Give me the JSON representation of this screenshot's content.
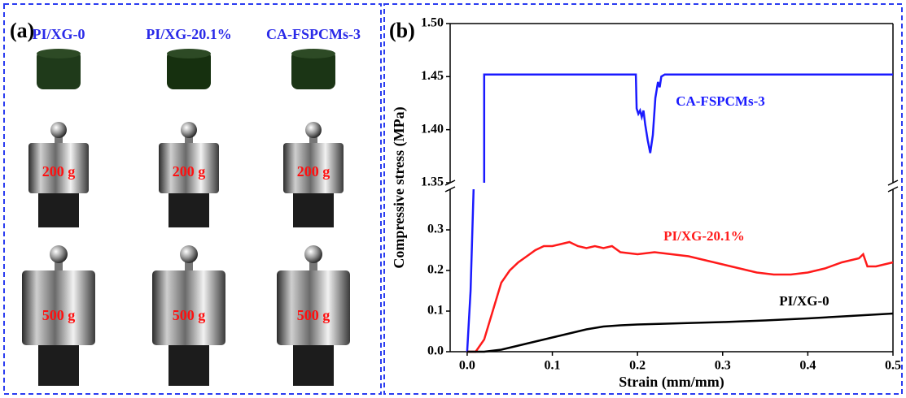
{
  "panel_a": {
    "label": "(a)",
    "columns": [
      "PI/XG-0",
      "PI/XG-20.1%",
      "CA-FSPCMs-3"
    ],
    "row_200": [
      "200 g",
      "200 g",
      "200 g"
    ],
    "row_500": [
      "500 g",
      "500 g",
      "500 g"
    ]
  },
  "chart_data": {
    "type": "line",
    "panel_label": "(b)",
    "x_label": "Strain (mm/mm)",
    "y_label": "Compressive stress (MPa)",
    "xlim": [
      -0.02,
      0.5
    ],
    "xticks": [
      {
        "value": 0,
        "label": "0.0"
      },
      0.1,
      0.2,
      0.3,
      0.4,
      0.5
    ],
    "y_segments": [
      {
        "ylim": [
          0,
          0.4
        ],
        "yticks": [
          {
            "value": 0,
            "label": "0.0"
          },
          0.1,
          0.2,
          0.3
        ]
      },
      {
        "ylim": [
          1.35,
          1.5
        ],
        "yticks": [
          1.35,
          {
            "value": 1.4,
            "label": "1.40"
          },
          1.45,
          {
            "value": 1.5,
            "label": "1.50"
          }
        ]
      }
    ],
    "series": [
      {
        "name": "CA-FSPCMs-3",
        "color": "#1a1aff",
        "x": [
          0,
          0.004,
          0.0075,
          null,
          0.02,
          0.02,
          0.198,
          0.199,
          0.201,
          0.203,
          0.205,
          0.207,
          0.209,
          0.212,
          0.215,
          0.218,
          0.221,
          0.224,
          0.226,
          0.228,
          0.232,
          0.5
        ],
        "values": [
          0,
          0.15,
          0.4,
          null,
          1.35,
          1.452,
          1.452,
          1.42,
          1.415,
          1.418,
          1.412,
          1.418,
          1.405,
          1.39,
          1.378,
          1.395,
          1.43,
          1.445,
          1.44,
          1.45,
          1.452,
          1.452
        ]
      },
      {
        "name": "PI/XG-20.1%",
        "color": "#ff1a1a",
        "x": [
          0,
          0.01,
          0.02,
          0.03,
          0.04,
          0.05,
          0.06,
          0.07,
          0.08,
          0.09,
          0.1,
          0.11,
          0.12,
          0.13,
          0.14,
          0.15,
          0.16,
          0.17,
          0.18,
          0.2,
          0.22,
          0.24,
          0.26,
          0.28,
          0.3,
          0.32,
          0.34,
          0.36,
          0.38,
          0.4,
          0.42,
          0.44,
          0.46,
          0.465,
          0.47,
          0.48,
          0.49,
          0.5
        ],
        "values": [
          0,
          0,
          0.03,
          0.1,
          0.17,
          0.2,
          0.22,
          0.235,
          0.25,
          0.26,
          0.26,
          0.265,
          0.27,
          0.26,
          0.255,
          0.26,
          0.255,
          0.26,
          0.245,
          0.24,
          0.245,
          0.24,
          0.235,
          0.225,
          0.215,
          0.205,
          0.195,
          0.19,
          0.19,
          0.195,
          0.205,
          0.22,
          0.23,
          0.24,
          0.21,
          0.21,
          0.215,
          0.22
        ]
      },
      {
        "name": "PI/XG-0",
        "color": "#000000",
        "x": [
          0,
          0.02,
          0.04,
          0.06,
          0.08,
          0.1,
          0.12,
          0.14,
          0.16,
          0.18,
          0.2,
          0.25,
          0.3,
          0.35,
          0.4,
          0.45,
          0.5
        ],
        "values": [
          0,
          0,
          0.005,
          0.015,
          0.025,
          0.035,
          0.045,
          0.055,
          0.062,
          0.065,
          0.067,
          0.07,
          0.073,
          0.077,
          0.082,
          0.088,
          0.094
        ]
      }
    ]
  }
}
